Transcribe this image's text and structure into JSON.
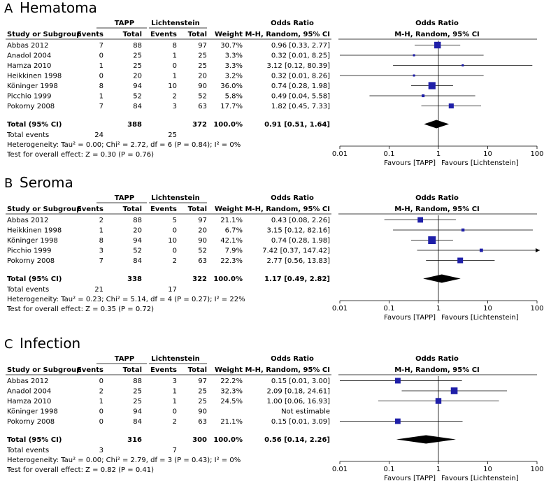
{
  "colors": {
    "marker": "#1f1fa8",
    "diamond": "#000000",
    "line": "#000000"
  },
  "headers": {
    "study": "Study or Subgroup",
    "group_a": "TAPP",
    "group_b": "Lichtenstein",
    "events": "Events",
    "total": "Total",
    "weight": "Weight",
    "or_title": "Odds Ratio",
    "or_method": "M-H, Random, 95% CI"
  },
  "chart_data": [
    {
      "type": "forest",
      "label": "A",
      "title": "Hematoma",
      "xscale": "log",
      "xlim": [
        0.01,
        100
      ],
      "ticks": [
        "0.01",
        "0.1",
        "1",
        "10",
        "100"
      ],
      "favours_left": "Favours [TAPP]",
      "favours_right": "Favours [Lichtenstein]",
      "studies": [
        {
          "name": "Abbas 2012",
          "e1": "7",
          "n1": "88",
          "e2": "8",
          "n2": "97",
          "weight": "30.7%",
          "or_text": "0.96 [0.33, 2.77]",
          "or": 0.96,
          "lo": 0.33,
          "hi": 2.77,
          "w": 30.7
        },
        {
          "name": "Anadol 2004",
          "e1": "0",
          "n1": "25",
          "e2": "1",
          "n2": "25",
          "weight": "3.3%",
          "or_text": "0.32 [0.01, 8.25]",
          "or": 0.32,
          "lo": 0.01,
          "hi": 8.25,
          "w": 3.3
        },
        {
          "name": "Hamza 2010",
          "e1": "1",
          "n1": "25",
          "e2": "0",
          "n2": "25",
          "weight": "3.3%",
          "or_text": "3.12 [0.12, 80.39]",
          "or": 3.12,
          "lo": 0.12,
          "hi": 80.39,
          "w": 3.3
        },
        {
          "name": "Heikkinen 1998",
          "e1": "0",
          "n1": "20",
          "e2": "1",
          "n2": "20",
          "weight": "3.2%",
          "or_text": "0.32 [0.01, 8.26]",
          "or": 0.32,
          "lo": 0.01,
          "hi": 8.26,
          "w": 3.2
        },
        {
          "name": "Köninger 1998",
          "e1": "8",
          "n1": "94",
          "e2": "10",
          "n2": "90",
          "weight": "36.0%",
          "or_text": "0.74 [0.28, 1.98]",
          "or": 0.74,
          "lo": 0.28,
          "hi": 1.98,
          "w": 36.0
        },
        {
          "name": "Picchio 1999",
          "e1": "1",
          "n1": "52",
          "e2": "2",
          "n2": "52",
          "weight": "5.8%",
          "or_text": "0.49 [0.04, 5.58]",
          "or": 0.49,
          "lo": 0.04,
          "hi": 5.58,
          "w": 5.8
        },
        {
          "name": "Pokorny 2008",
          "e1": "7",
          "n1": "84",
          "e2": "3",
          "n2": "63",
          "weight": "17.7%",
          "or_text": "1.82 [0.45, 7.33]",
          "or": 1.82,
          "lo": 0.45,
          "hi": 7.33,
          "w": 17.7
        }
      ],
      "total": {
        "name": "Total (95% CI)",
        "n1": "388",
        "n2": "372",
        "weight": "100.0%",
        "or_text": "0.91 [0.51, 1.64]",
        "or": 0.91,
        "lo": 0.51,
        "hi": 1.64
      },
      "total_events_label": "Total events",
      "total_events_a": "24",
      "total_events_b": "25",
      "heterogeneity": "Heterogeneity: Tau² = 0.00; Chi² = 2.72, df = 6 (P = 0.84); I² = 0%",
      "overall": "Test for overall effect: Z = 0.30 (P = 0.76)"
    },
    {
      "type": "forest",
      "label": "B",
      "title": "Seroma",
      "xscale": "log",
      "xlim": [
        0.01,
        100
      ],
      "ticks": [
        "0.01",
        "0.1",
        "1",
        "10",
        "100"
      ],
      "favours_left": "Favours [TAPP]",
      "favours_right": "Favours [Lichtenstein]",
      "studies": [
        {
          "name": "Abbas 2012",
          "e1": "2",
          "n1": "88",
          "e2": "5",
          "n2": "97",
          "weight": "21.1%",
          "or_text": "0.43 [0.08, 2.26]",
          "or": 0.43,
          "lo": 0.08,
          "hi": 2.26,
          "w": 21.1
        },
        {
          "name": "Heikkinen 1998",
          "e1": "1",
          "n1": "20",
          "e2": "0",
          "n2": "20",
          "weight": "6.7%",
          "or_text": "3.15 [0.12, 82.16]",
          "or": 3.15,
          "lo": 0.12,
          "hi": 82.16,
          "w": 6.7
        },
        {
          "name": "Köninger 1998",
          "e1": "8",
          "n1": "94",
          "e2": "10",
          "n2": "90",
          "weight": "42.1%",
          "or_text": "0.74 [0.28, 1.98]",
          "or": 0.74,
          "lo": 0.28,
          "hi": 1.98,
          "w": 42.1
        },
        {
          "name": "Picchio 1999",
          "e1": "3",
          "n1": "52",
          "e2": "0",
          "n2": "52",
          "weight": "7.9%",
          "or_text": "7.42 [0.37, 147.42]",
          "or": 7.42,
          "lo": 0.37,
          "hi": 147.42,
          "w": 7.9
        },
        {
          "name": "Pokorny 2008",
          "e1": "7",
          "n1": "84",
          "e2": "2",
          "n2": "63",
          "weight": "22.3%",
          "or_text": "2.77 [0.56, 13.83]",
          "or": 2.77,
          "lo": 0.56,
          "hi": 13.83,
          "w": 22.3
        }
      ],
      "total": {
        "name": "Total (95% CI)",
        "n1": "338",
        "n2": "322",
        "weight": "100.0%",
        "or_text": "1.17 [0.49, 2.82]",
        "or": 1.17,
        "lo": 0.49,
        "hi": 2.82
      },
      "total_events_label": "Total events",
      "total_events_a": "21",
      "total_events_b": "17",
      "heterogeneity": "Heterogeneity: Tau² = 0.23; Chi² = 5.14, df = 4 (P = 0.27); I² = 22%",
      "overall": "Test for overall effect: Z = 0.35 (P = 0.72)"
    },
    {
      "type": "forest",
      "label": "C",
      "title": "Infection",
      "xscale": "log",
      "xlim": [
        0.01,
        100
      ],
      "ticks": [
        "0.01",
        "0.1",
        "1",
        "10",
        "100"
      ],
      "favours_left": "Favours [TAPP]",
      "favours_right": "Favours [Lichtenstein]",
      "studies": [
        {
          "name": "Abbas 2012",
          "e1": "0",
          "n1": "88",
          "e2": "3",
          "n2": "97",
          "weight": "22.2%",
          "or_text": "0.15 [0.01, 3.00]",
          "or": 0.15,
          "lo": 0.01,
          "hi": 3.0,
          "w": 22.2
        },
        {
          "name": "Anadol 2004",
          "e1": "2",
          "n1": "25",
          "e2": "1",
          "n2": "25",
          "weight": "32.3%",
          "or_text": "2.09 [0.18, 24.61]",
          "or": 2.09,
          "lo": 0.18,
          "hi": 24.61,
          "w": 32.3
        },
        {
          "name": "Hamza 2010",
          "e1": "1",
          "n1": "25",
          "e2": "1",
          "n2": "25",
          "weight": "24.5%",
          "or_text": "1.00 [0.06, 16.93]",
          "or": 1.0,
          "lo": 0.06,
          "hi": 16.93,
          "w": 24.5
        },
        {
          "name": "Köninger 1998",
          "e1": "0",
          "n1": "94",
          "e2": "0",
          "n2": "90",
          "weight": "",
          "or_text": "Not estimable",
          "or": null,
          "lo": null,
          "hi": null,
          "w": 0
        },
        {
          "name": "Pokorny 2008",
          "e1": "0",
          "n1": "84",
          "e2": "2",
          "n2": "63",
          "weight": "21.1%",
          "or_text": "0.15 [0.01, 3.09]",
          "or": 0.15,
          "lo": 0.01,
          "hi": 3.09,
          "w": 21.1
        }
      ],
      "total": {
        "name": "Total (95% CI)",
        "n1": "316",
        "n2": "300",
        "weight": "100.0%",
        "or_text": "0.56 [0.14, 2.26]",
        "or": 0.56,
        "lo": 0.14,
        "hi": 2.26
      },
      "total_events_label": "Total events",
      "total_events_a": "3",
      "total_events_b": "7",
      "heterogeneity": "Heterogeneity: Tau² = 0.00; Chi² = 2.79, df = 3 (P = 0.43); I² = 0%",
      "overall": "Test for overall effect: Z = 0.82 (P = 0.41)"
    }
  ]
}
